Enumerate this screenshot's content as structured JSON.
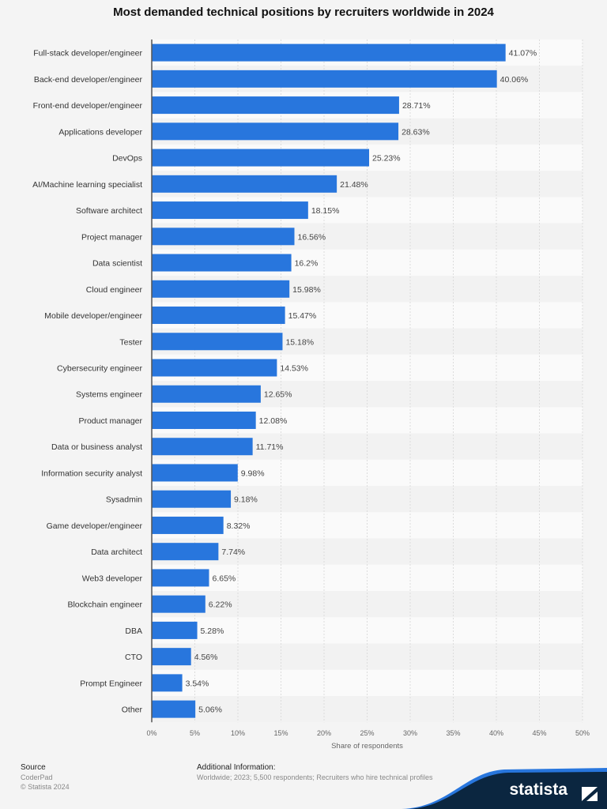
{
  "chart_data": {
    "type": "bar",
    "orientation": "horizontal",
    "title": "Most demanded technical positions by recruiters worldwide in 2024",
    "xlabel": "Share of respondents",
    "ylabel": "",
    "xlim": [
      0,
      50
    ],
    "x_ticks": [
      "0%",
      "5%",
      "10%",
      "15%",
      "20%",
      "25%",
      "30%",
      "35%",
      "40%",
      "45%",
      "50%"
    ],
    "grid": true,
    "bar_color": "#2876dd",
    "categories": [
      "Full-stack developer/engineer",
      "Back-end developer/engineer",
      "Front-end developer/engineer",
      "Applications developer",
      "DevOps",
      "AI/Machine learning specialist",
      "Software architect",
      "Project manager",
      "Data scientist",
      "Cloud engineer",
      "Mobile developer/engineer",
      "Tester",
      "Cybersecurity engineer",
      "Systems engineer",
      "Product manager",
      "Data or business analyst",
      "Information security analyst",
      "Sysadmin",
      "Game developer/engineer",
      "Data architect",
      "Web3 developer",
      "Blockchain engineer",
      "DBA",
      "CTO",
      "Prompt Engineer",
      "Other"
    ],
    "values": [
      41.07,
      40.06,
      28.71,
      28.63,
      25.23,
      21.48,
      18.15,
      16.56,
      16.2,
      15.98,
      15.47,
      15.18,
      14.53,
      12.65,
      12.08,
      11.71,
      9.98,
      9.18,
      8.32,
      7.74,
      6.65,
      6.22,
      5.28,
      4.56,
      3.54,
      5.06
    ],
    "data_labels": [
      "41.07%",
      "40.06%",
      "28.71%",
      "28.63%",
      "25.23%",
      "21.48%",
      "18.15%",
      "16.56%",
      "16.2%",
      "15.98%",
      "15.47%",
      "15.18%",
      "14.53%",
      "12.65%",
      "12.08%",
      "11.71%",
      "9.98%",
      "9.18%",
      "8.32%",
      "7.74%",
      "6.65%",
      "6.22%",
      "5.28%",
      "4.56%",
      "3.54%",
      "5.06%"
    ]
  },
  "footer": {
    "source_heading": "Source",
    "source": "CoderPad",
    "copyright": "© Statista 2024",
    "info_heading": "Additional Information:",
    "info": "Worldwide; 2023; 5,500 respondents; Recruiters who hire technical profiles",
    "brand": "statista"
  }
}
